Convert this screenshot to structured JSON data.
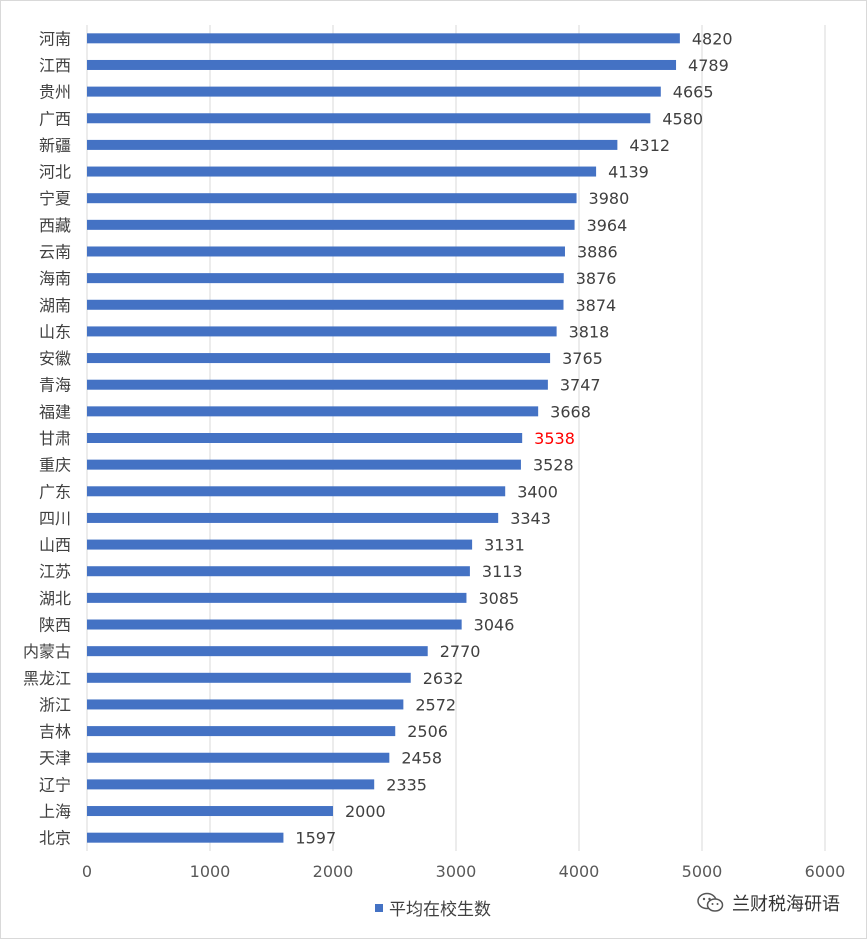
{
  "chart_data": {
    "type": "bar",
    "orientation": "horizontal",
    "categories": [
      "河南",
      "江西",
      "贵州",
      "广西",
      "新疆",
      "河北",
      "宁夏",
      "西藏",
      "云南",
      "海南",
      "湖南",
      "山东",
      "安徽",
      "青海",
      "福建",
      "甘肃",
      "重庆",
      "广东",
      "四川",
      "山西",
      "江苏",
      "湖北",
      "陕西",
      "内蒙古",
      "黑龙江",
      "浙江",
      "吉林",
      "天津",
      "辽宁",
      "上海",
      "北京"
    ],
    "series": [
      {
        "name": "平均在校生数",
        "values": [
          4820,
          4789,
          4665,
          4580,
          4312,
          4139,
          3980,
          3964,
          3886,
          3876,
          3874,
          3818,
          3765,
          3747,
          3668,
          3538,
          3528,
          3400,
          3343,
          3131,
          3113,
          3085,
          3046,
          2770,
          2632,
          2572,
          2506,
          2458,
          2335,
          2000,
          1597
        ]
      }
    ],
    "xlim": [
      0,
      6000
    ],
    "xticks": [
      "0",
      "1000",
      "2000",
      "3000",
      "4000",
      "5000",
      "6000"
    ],
    "grid": true,
    "legend": "bottom",
    "bar_color": "#4472C4",
    "highlight": {
      "category": "甘肃",
      "label_color": "#FF0000"
    }
  },
  "watermark": {
    "text": "兰财税海研语",
    "icon": "wechat-icon"
  }
}
